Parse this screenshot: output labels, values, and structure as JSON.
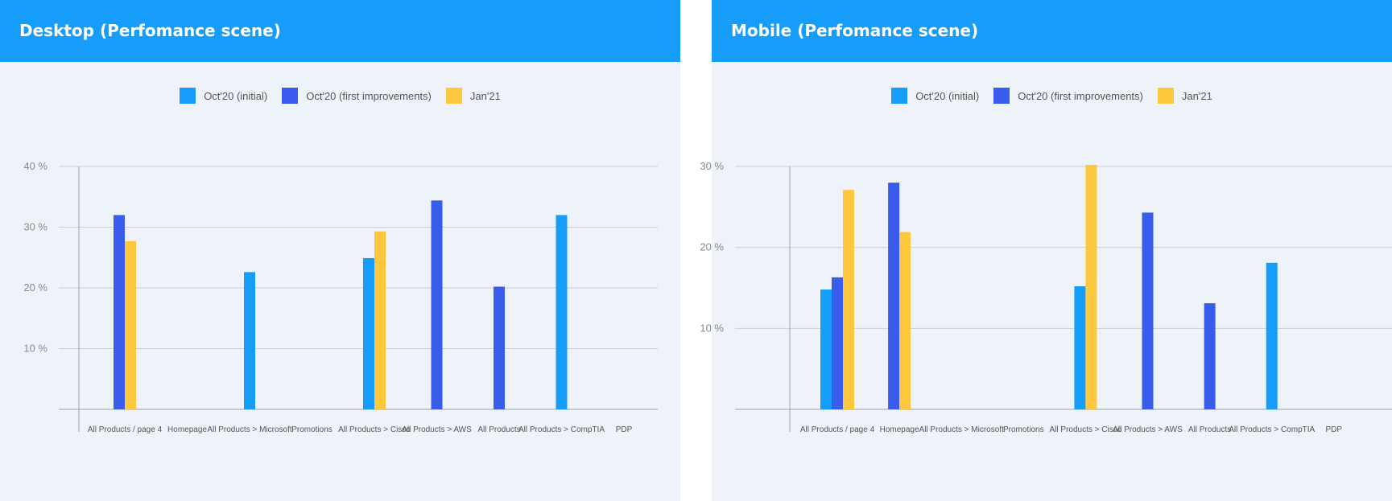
{
  "colors": {
    "header": "#169dfa",
    "panel_bg": "#eef3f9",
    "series": [
      "#169dfa",
      "#3a5ced",
      "#fdc73e"
    ]
  },
  "legend": [
    "Oct'20 (initial)",
    "Oct'20 (first improvements)",
    "Jan'21"
  ],
  "chart_data": [
    {
      "type": "bar",
      "title": "Desktop (Perfomance scene)",
      "categories": [
        "All Products / page 4",
        "Homepage",
        "All Products > Microsoft",
        "Promotions",
        "All Products > Cisco",
        "All Products > AWS",
        "All Products",
        "All Products > CompTIA",
        "PDP"
      ],
      "series": [
        {
          "name": "Oct'20 (initial)",
          "values": [
            null,
            null,
            22.6,
            null,
            24.9,
            null,
            null,
            32,
            null
          ]
        },
        {
          "name": "Oct'20 (first improvements)",
          "values": [
            32,
            null,
            null,
            null,
            null,
            34.4,
            20.2,
            null,
            null
          ]
        },
        {
          "name": "Jan'21",
          "values": [
            27.7,
            null,
            null,
            null,
            29.3,
            null,
            null,
            null,
            null
          ]
        }
      ],
      "ylim": [
        0,
        40
      ],
      "yticks": [
        {
          "v": 10,
          "label": "10 %"
        },
        {
          "v": 20,
          "label": "20 %"
        },
        {
          "v": 30,
          "label": "30 %"
        },
        {
          "v": 40,
          "label": "40 %"
        }
      ],
      "grid": true,
      "legend_position": "top-center"
    },
    {
      "type": "bar",
      "title": "Mobile (Perfomance scene)",
      "categories": [
        "All Products / page 4",
        "Homepage",
        "All Products > Microsoft",
        "Promotions",
        "All Products > Cisco",
        "All Products > AWS",
        "All Products",
        "All Products > CompTIA",
        "PDP"
      ],
      "series": [
        {
          "name": "Oct'20 (initial)",
          "values": [
            14.8,
            null,
            null,
            null,
            15.2,
            null,
            null,
            18.1,
            null
          ]
        },
        {
          "name": "Oct'20 (first improvements)",
          "values": [
            16.3,
            28,
            null,
            null,
            null,
            24.3,
            13.1,
            null,
            null
          ]
        },
        {
          "name": "Jan'21",
          "values": [
            27.1,
            21.9,
            null,
            null,
            30.2,
            null,
            null,
            null,
            null
          ]
        }
      ],
      "ylim": [
        0,
        30
      ],
      "yticks": [
        {
          "v": 10,
          "label": "10 %"
        },
        {
          "v": 20,
          "label": "20 %"
        },
        {
          "v": 30,
          "label": "30 %"
        }
      ],
      "grid": true,
      "legend_position": "top-center"
    }
  ]
}
